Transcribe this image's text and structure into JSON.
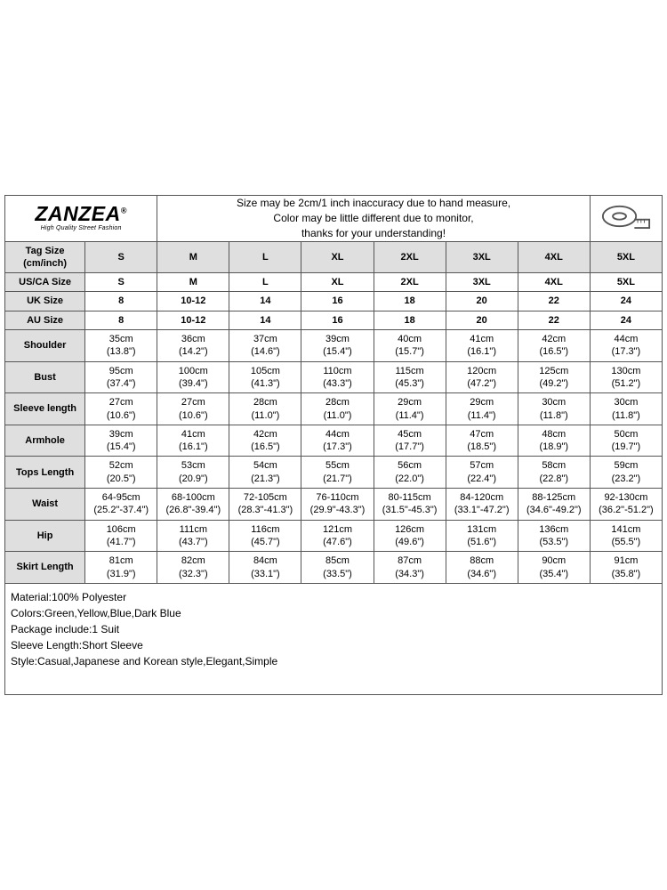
{
  "brand": {
    "name": "ZANZEA",
    "reg": "®",
    "tagline": "High Quality Street Fashion"
  },
  "disclaimer": {
    "l1": "Size may be 2cm/1 inch inaccuracy due to hand measure,",
    "l2": "Color may be little different due to monitor,",
    "l3": "thanks for your understanding!"
  },
  "header": {
    "tagsize_l1": "Tag Size",
    "tagsize_l2": "(cm/inch)"
  },
  "sizes": [
    "S",
    "M",
    "L",
    "XL",
    "2XL",
    "3XL",
    "4XL",
    "5XL"
  ],
  "rows": {
    "usca": {
      "label": "US/CA Size",
      "vals": [
        "S",
        "M",
        "L",
        "XL",
        "2XL",
        "3XL",
        "4XL",
        "5XL"
      ]
    },
    "uk": {
      "label": "UK Size",
      "vals": [
        "8",
        "10-12",
        "14",
        "16",
        "18",
        "20",
        "22",
        "24"
      ]
    },
    "au": {
      "label": "AU Size",
      "vals": [
        "8",
        "10-12",
        "14",
        "16",
        "18",
        "20",
        "22",
        "24"
      ]
    }
  },
  "measure": [
    {
      "label": "Shoulder",
      "cm": [
        "35cm",
        "36cm",
        "37cm",
        "39cm",
        "40cm",
        "41cm",
        "42cm",
        "44cm"
      ],
      "in": [
        "(13.8\")",
        "(14.2\")",
        "(14.6\")",
        "(15.4\")",
        "(15.7\")",
        "(16.1\")",
        "(16.5\")",
        "(17.3\")"
      ]
    },
    {
      "label": "Bust",
      "cm": [
        "95cm",
        "100cm",
        "105cm",
        "110cm",
        "115cm",
        "120cm",
        "125cm",
        "130cm"
      ],
      "in": [
        "(37.4\")",
        "(39.4\")",
        "(41.3\")",
        "(43.3\")",
        "(45.3\")",
        "(47.2\")",
        "(49.2\")",
        "(51.2\")"
      ]
    },
    {
      "label": "Sleeve length",
      "cm": [
        "27cm",
        "27cm",
        "28cm",
        "28cm",
        "29cm",
        "29cm",
        "30cm",
        "30cm"
      ],
      "in": [
        "(10.6\")",
        "(10.6\")",
        "(11.0\")",
        "(11.0\")",
        "(11.4\")",
        "(11.4\")",
        "(11.8\")",
        "(11.8\")"
      ]
    },
    {
      "label": "Armhole",
      "cm": [
        "39cm",
        "41cm",
        "42cm",
        "44cm",
        "45cm",
        "47cm",
        "48cm",
        "50cm"
      ],
      "in": [
        "(15.4\")",
        "(16.1\")",
        "(16.5\")",
        "(17.3\")",
        "(17.7\")",
        "(18.5\")",
        "(18.9\")",
        "(19.7\")"
      ]
    },
    {
      "label": "Tops Length",
      "cm": [
        "52cm",
        "53cm",
        "54cm",
        "55cm",
        "56cm",
        "57cm",
        "58cm",
        "59cm"
      ],
      "in": [
        "(20.5\")",
        "(20.9\")",
        "(21.3\")",
        "(21.7\")",
        "(22.0\")",
        "(22.4\")",
        "(22.8\")",
        "(23.2\")"
      ]
    },
    {
      "label": "Waist",
      "cm": [
        "64-95cm",
        "68-100cm",
        "72-105cm",
        "76-110cm",
        "80-115cm",
        "84-120cm",
        "88-125cm",
        "92-130cm"
      ],
      "in": [
        "(25.2\"-37.4\")",
        "(26.8\"-39.4\")",
        "(28.3\"-41.3\")",
        "(29.9\"-43.3\")",
        "(31.5\"-45.3\")",
        "(33.1\"-47.2\")",
        "(34.6\"-49.2\")",
        "(36.2\"-51.2\")"
      ]
    },
    {
      "label": "Hip",
      "cm": [
        "106cm",
        "111cm",
        "116cm",
        "121cm",
        "126cm",
        "131cm",
        "136cm",
        "141cm"
      ],
      "in": [
        "(41.7\")",
        "(43.7\")",
        "(45.7\")",
        "(47.6\")",
        "(49.6\")",
        "(51.6\")",
        "(53.5\")",
        "(55.5\")"
      ]
    },
    {
      "label": "Skirt Length",
      "cm": [
        "81cm",
        "82cm",
        "84cm",
        "85cm",
        "87cm",
        "88cm",
        "90cm",
        "91cm"
      ],
      "in": [
        "(31.9\")",
        "(32.3\")",
        "(33.1\")",
        "(33.5\")",
        "(34.3\")",
        "(34.6\")",
        "(35.4\")",
        "(35.8\")"
      ]
    }
  ],
  "notes": {
    "l1": "Material:100% Polyester",
    "l2": "Colors:Green,Yellow,Blue,Dark Blue",
    "l3": "Package include:1 Suit",
    "l4": "Sleeve Length:Short Sleeve",
    "l5": "Style:Casual,Japanese and Korean style,Elegant,Simple"
  },
  "colors": {
    "gray_bg": "#dfdfdf",
    "border": "#555555",
    "text": "#000000",
    "bg": "#ffffff"
  }
}
